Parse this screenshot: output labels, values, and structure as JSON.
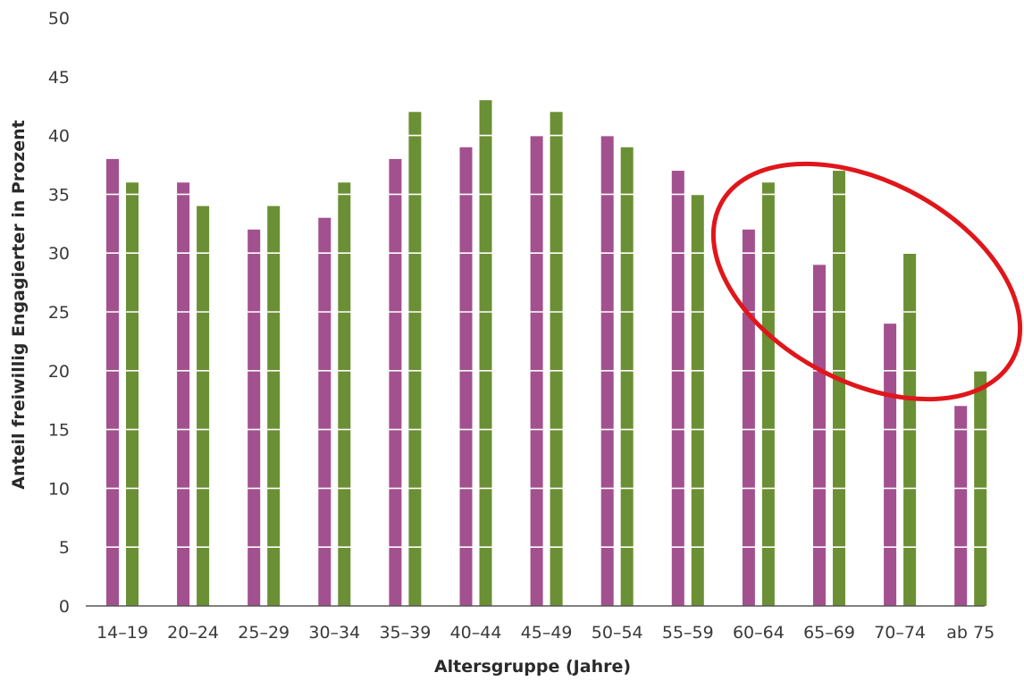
{
  "chart_data": {
    "type": "bar",
    "xlabel": "Altersgruppe (Jahre)",
    "ylabel": "Anteil freiwillig Engagierter in Prozent",
    "ylim": [
      0,
      50
    ],
    "yticks": [
      "0",
      "5",
      "10",
      "15",
      "20",
      "25",
      "30",
      "35",
      "40",
      "45",
      "50"
    ],
    "categories": [
      "14–19",
      "20–24",
      "25–29",
      "30–34",
      "35–39",
      "40–44",
      "45–49",
      "50–54",
      "55–59",
      "60–64",
      "65–69",
      "70–74",
      "ab 75"
    ],
    "series": [
      {
        "color": "#a3508f",
        "values": [
          38,
          36,
          32,
          33,
          38,
          39,
          40,
          40,
          37,
          32,
          29,
          24,
          17
        ]
      },
      {
        "color": "#6b8f34",
        "values": [
          36,
          34,
          34,
          36,
          42,
          43,
          42,
          39,
          35,
          36,
          37,
          30,
          20
        ]
      }
    ],
    "grid": true,
    "legend": "none",
    "annotation": {
      "shape": "ellipse",
      "color": "#e0161b",
      "around_categories": [
        "60–64",
        "65–69",
        "70–74"
      ]
    }
  }
}
